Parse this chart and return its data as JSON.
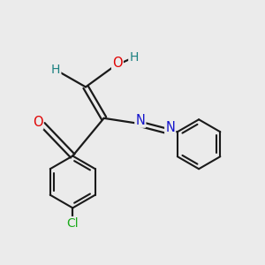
{
  "background_color": "#ebebeb",
  "bond_color": "#1a1a1a",
  "atom_colors": {
    "O": "#e00000",
    "N": "#1414cc",
    "Cl": "#1aaa1a",
    "H_enol": "#1a8080",
    "H_ald": "#1a8080"
  },
  "lw": 1.6,
  "font_size": 9.5
}
